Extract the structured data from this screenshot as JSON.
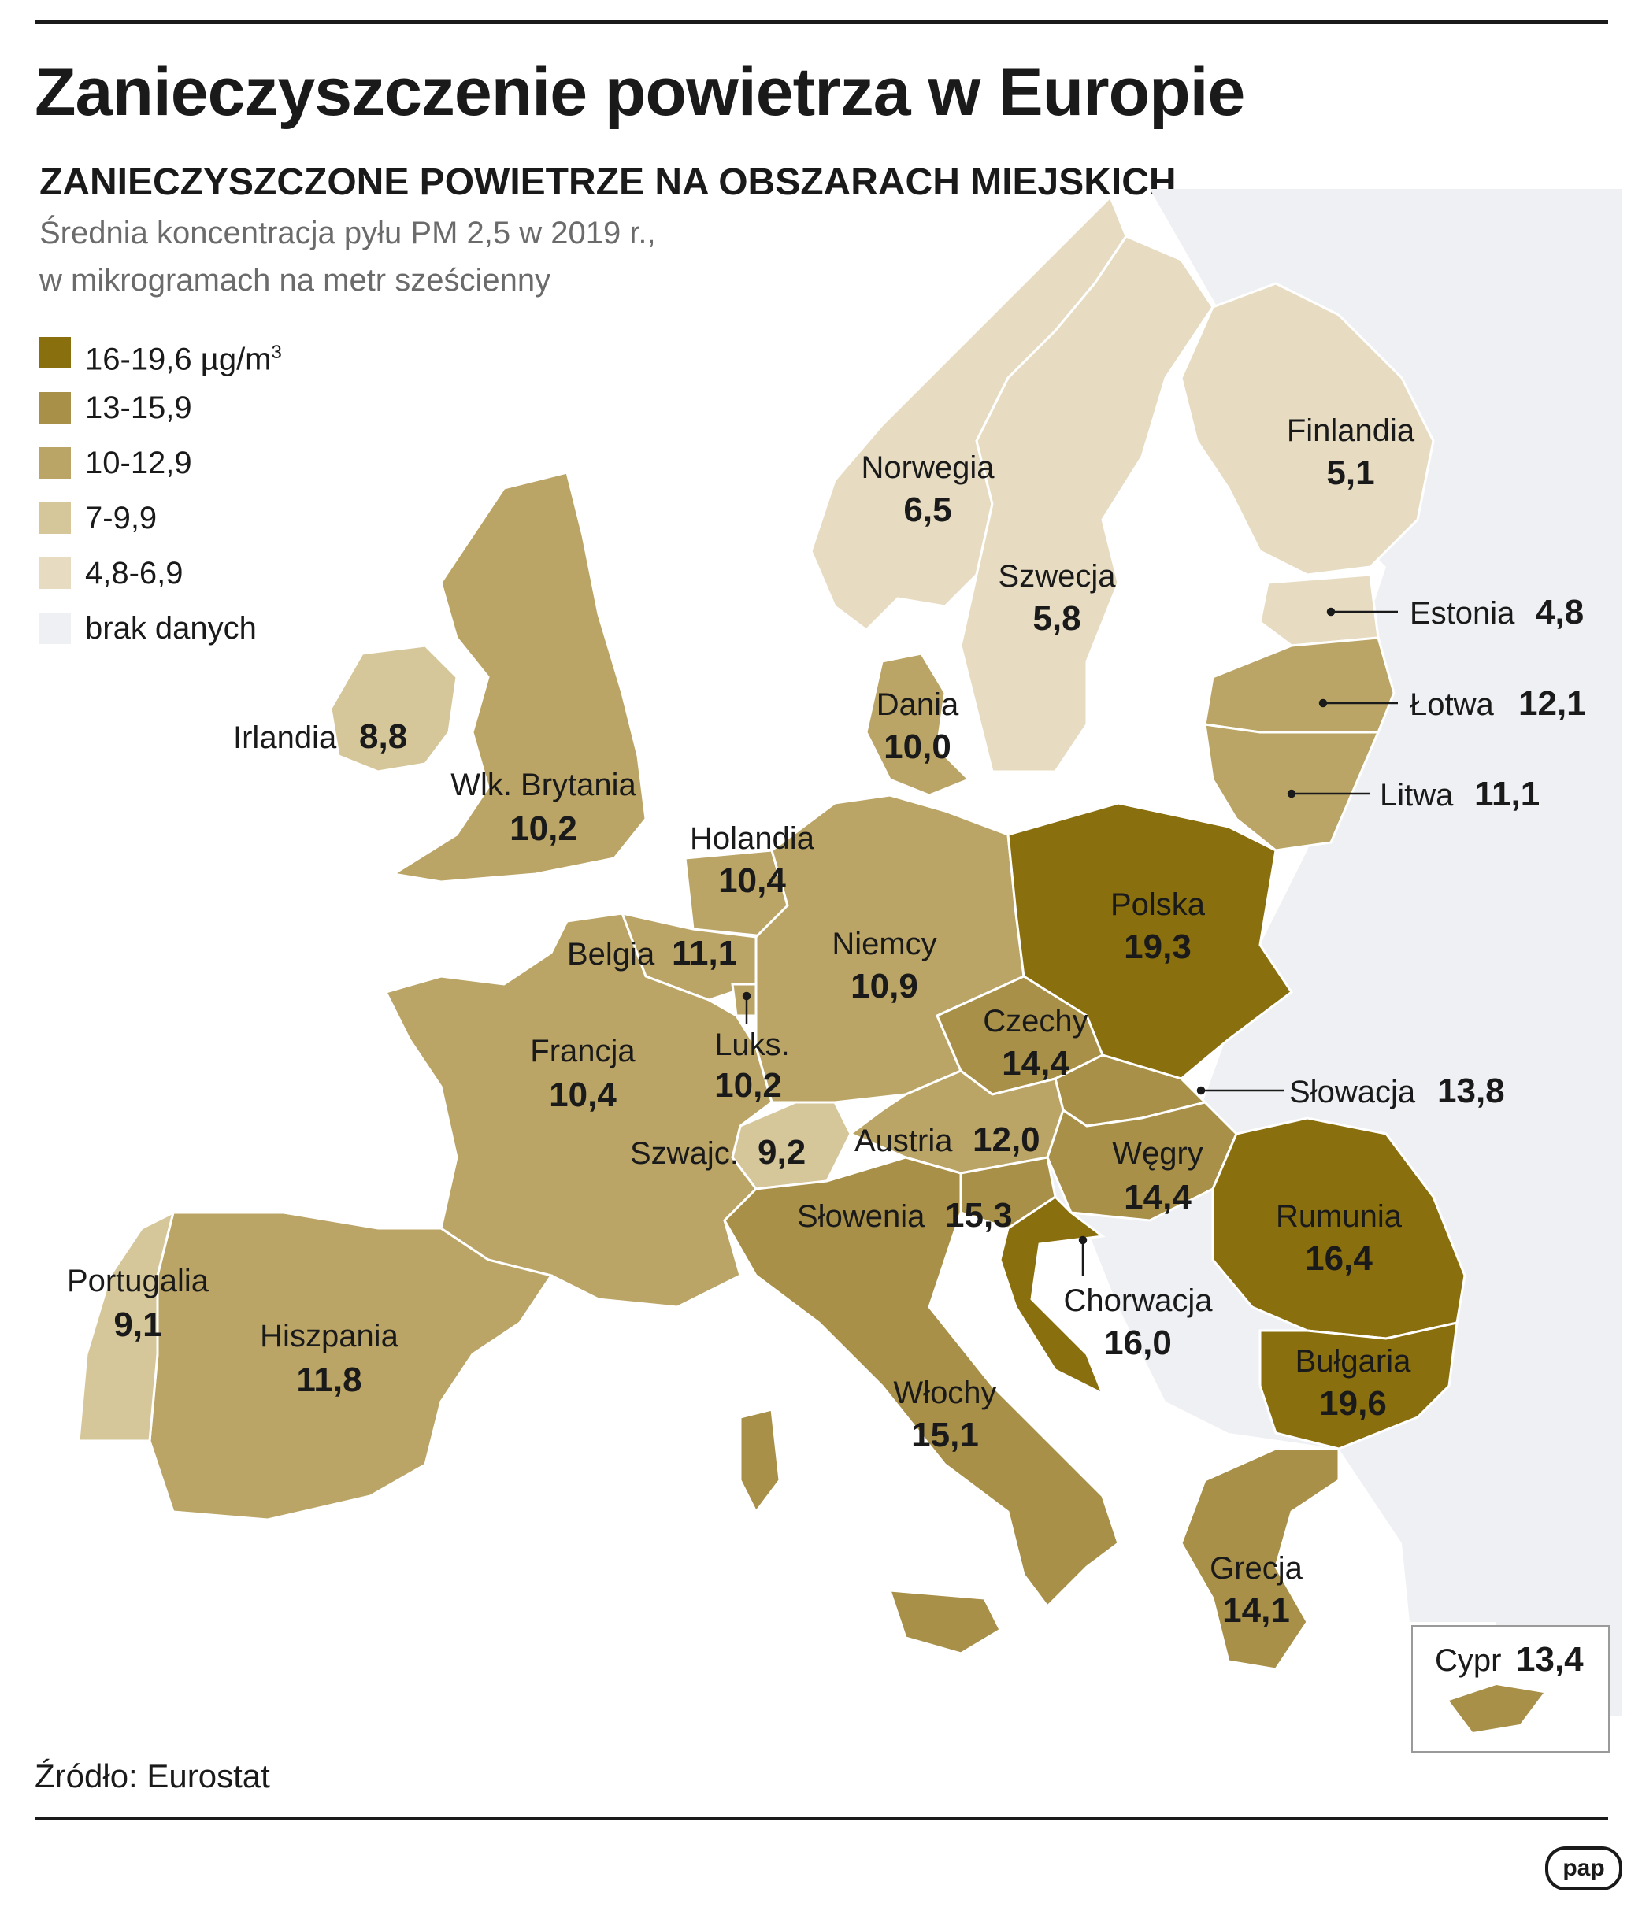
{
  "title": "Zanieczyszczenie powietrza w Europie",
  "subtitle": "ZANIECZYSZCZONE POWIETRZE NA OBSZARACH MIEJSKICH",
  "description": [
    "Średnia koncentracja pyłu PM 2,5 w 2019 r.,",
    "w mikrogramach na metr sześcienny"
  ],
  "legend": [
    {
      "label": "16-19,6 µg/m",
      "sup": "3",
      "color": "#8a6f0e"
    },
    {
      "label": "13-15,9",
      "color": "#a89048"
    },
    {
      "label": "10-12,9",
      "color": "#bba566"
    },
    {
      "label": "7-9,9",
      "color": "#d6c79b"
    },
    {
      "label": "4,8-6,9",
      "color": "#e7dcc2"
    },
    {
      "label": "brak danych",
      "color": "#eef0f3"
    }
  ],
  "countries": [
    {
      "name": "Finlandia",
      "value": "5,1",
      "color": "#e7dcc2"
    },
    {
      "name": "Norwegia",
      "value": "6,5",
      "color": "#e7dcc2"
    },
    {
      "name": "Szwecja",
      "value": "5,8",
      "color": "#e7dcc2"
    },
    {
      "name": "Estonia",
      "value": "4,8",
      "color": "#e7dcc2"
    },
    {
      "name": "Łotwa",
      "value": "12,1",
      "color": "#bba566"
    },
    {
      "name": "Litwa",
      "value": "11,1",
      "color": "#bba566"
    },
    {
      "name": "Dania",
      "value": "10,0",
      "color": "#bba566"
    },
    {
      "name": "Irlandia",
      "value": "8,8",
      "color": "#d6c79b"
    },
    {
      "name": "Wlk. Brytania",
      "value": "10,2",
      "color": "#bba566"
    },
    {
      "name": "Holandia",
      "value": "10,4",
      "color": "#bba566"
    },
    {
      "name": "Belgia",
      "value": "11,1",
      "color": "#bba566"
    },
    {
      "name": "Luks.",
      "value": "10,2",
      "color": "#bba566"
    },
    {
      "name": "Niemcy",
      "value": "10,9",
      "color": "#bba566"
    },
    {
      "name": "Polska",
      "value": "19,3",
      "color": "#8a6f0e"
    },
    {
      "name": "Czechy",
      "value": "14,4",
      "color": "#a89048"
    },
    {
      "name": "Słowacja",
      "value": "13,8",
      "color": "#a89048"
    },
    {
      "name": "Francja",
      "value": "10,4",
      "color": "#bba566"
    },
    {
      "name": "Szwajc.",
      "value": "9,2",
      "color": "#d6c79b"
    },
    {
      "name": "Austria",
      "value": "12,0",
      "color": "#bba566"
    },
    {
      "name": "Węgry",
      "value": "14,4",
      "color": "#a89048"
    },
    {
      "name": "Rumunia",
      "value": "16,4",
      "color": "#8a6f0e"
    },
    {
      "name": "Słowenia",
      "value": "15,3",
      "color": "#a89048"
    },
    {
      "name": "Chorwacja",
      "value": "16,0",
      "color": "#8a6f0e"
    },
    {
      "name": "Bułgaria",
      "value": "19,6",
      "color": "#8a6f0e"
    },
    {
      "name": "Portugalia",
      "value": "9,1",
      "color": "#d6c79b"
    },
    {
      "name": "Hiszpania",
      "value": "11,8",
      "color": "#bba566"
    },
    {
      "name": "Włochy",
      "value": "15,1",
      "color": "#a89048"
    },
    {
      "name": "Grecja",
      "value": "14,1",
      "color": "#a89048"
    },
    {
      "name": "Cypr",
      "value": "13,4",
      "color": "#a89048"
    }
  ],
  "source": "Źródło: Eurostat",
  "logo": "pap"
}
